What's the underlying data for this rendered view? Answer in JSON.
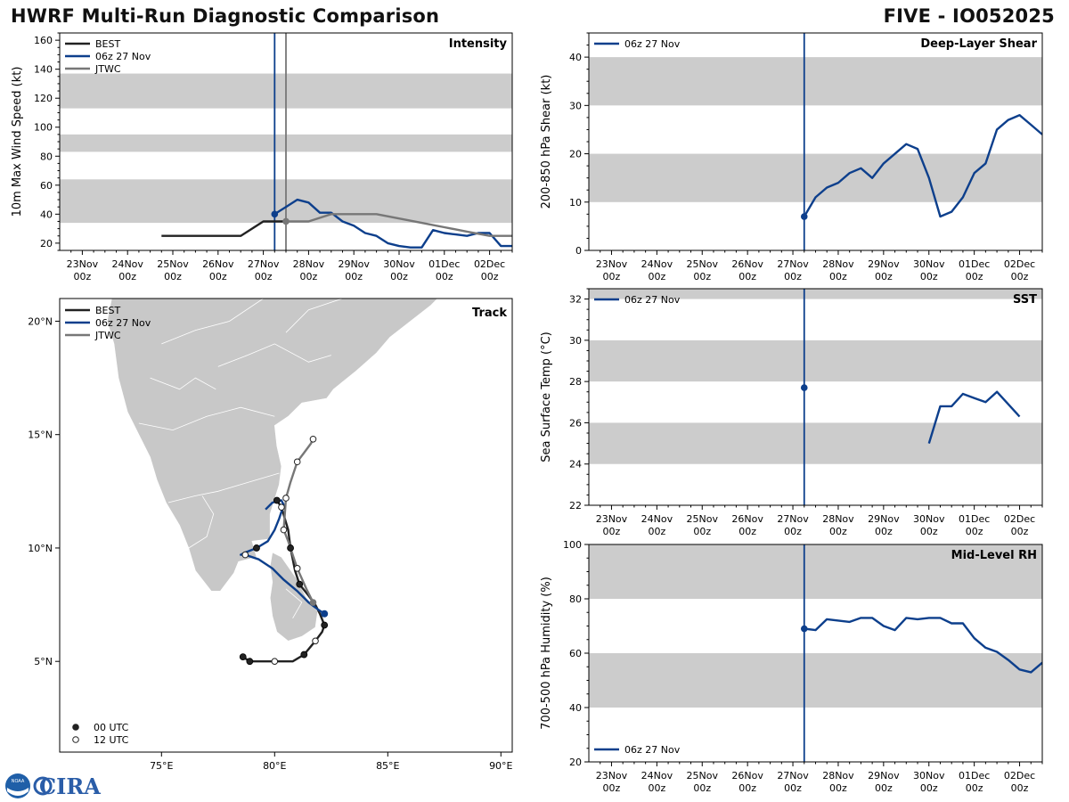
{
  "header": {
    "title": "HWRF Multi-Run Diagnostic Comparison",
    "storm": "FIVE - IO052025"
  },
  "logo": {
    "noaa_text": "NOAA",
    "cira_text": "CIRA"
  },
  "colors": {
    "best": "#222222",
    "run": "#0d3f8c",
    "jtwc": "#777777",
    "band": "#cccccc",
    "land": "#c8c8c8"
  },
  "time_axis": {
    "ticks": [
      {
        "day": "23Nov",
        "hr": "00z",
        "t": 0
      },
      {
        "day": "24Nov",
        "hr": "00z",
        "t": 24
      },
      {
        "day": "25Nov",
        "hr": "00z",
        "t": 48
      },
      {
        "day": "26Nov",
        "hr": "00z",
        "t": 72
      },
      {
        "day": "27Nov",
        "hr": "00z",
        "t": 96
      },
      {
        "day": "28Nov",
        "hr": "00z",
        "t": 120
      },
      {
        "day": "29Nov",
        "hr": "00z",
        "t": 144
      },
      {
        "day": "30Nov",
        "hr": "00z",
        "t": 168
      },
      {
        "day": "01Dec",
        "hr": "00z",
        "t": 192
      },
      {
        "day": "02Dec",
        "hr": "00z",
        "t": 216
      }
    ],
    "range_hours": [
      -12,
      228
    ]
  },
  "chart_data": [
    {
      "id": "intensity",
      "type": "line",
      "title": "Intensity",
      "ylabel": "10m Max Wind Speed (kt)",
      "ylim": [
        15,
        165
      ],
      "yticks": [
        20,
        40,
        60,
        80,
        100,
        120,
        140,
        160
      ],
      "bands": [
        [
          34,
          64
        ],
        [
          83,
          95
        ],
        [
          113,
          137
        ]
      ],
      "init_line_hours": 102,
      "jtwc_line_hours": 108,
      "legend": [
        "BEST",
        "06z 27 Nov",
        "JTWC"
      ],
      "series": [
        {
          "name": "BEST",
          "color": "#222222",
          "x": [
            42,
            48,
            54,
            60,
            66,
            72,
            78,
            84,
            90,
            96,
            102,
            108
          ],
          "y": [
            25,
            25,
            25,
            25,
            25,
            25,
            25,
            25,
            30,
            35,
            35,
            35
          ]
        },
        {
          "name": "06z 27 Nov",
          "color": "#0d3f8c",
          "x": [
            102,
            108,
            114,
            120,
            126,
            132,
            138,
            144,
            150,
            156,
            162,
            168,
            174,
            180,
            186,
            192,
            198,
            204,
            210,
            216,
            222,
            228
          ],
          "y": [
            40,
            45,
            50,
            48,
            41,
            41,
            35,
            32,
            27,
            25,
            20,
            18,
            17,
            17,
            29,
            27,
            26,
            25,
            27,
            27,
            18,
            18
          ],
          "marker_first": true
        },
        {
          "name": "JTWC",
          "color": "#777777",
          "x": [
            108,
            120,
            132,
            144,
            156,
            168,
            180,
            192,
            204,
            216,
            228
          ],
          "y": [
            35,
            35,
            40,
            40,
            40,
            37,
            34,
            31,
            28,
            25,
            25
          ],
          "marker_first": true
        }
      ]
    },
    {
      "id": "shear",
      "type": "line",
      "title": "Deep-Layer Shear",
      "ylabel": "200-850 hPa Shear (kt)",
      "ylim": [
        0,
        45
      ],
      "yticks": [
        0,
        10,
        20,
        30,
        40
      ],
      "bands": [
        [
          10,
          20
        ],
        [
          30,
          40
        ]
      ],
      "init_line_hours": 102,
      "legend": [
        "06z 27 Nov"
      ],
      "series": [
        {
          "name": "06z 27 Nov",
          "color": "#0d3f8c",
          "x": [
            102,
            108,
            114,
            120,
            126,
            132,
            138,
            144,
            150,
            156,
            162,
            168,
            174,
            180,
            186,
            192,
            198,
            204,
            210,
            216,
            222,
            228
          ],
          "y": [
            7,
            11,
            13,
            14,
            16,
            17,
            15,
            18,
            20,
            22,
            21,
            15,
            7,
            8,
            11,
            16,
            18,
            25,
            27,
            28,
            26,
            24
          ],
          "marker_first": true
        }
      ]
    },
    {
      "id": "sst",
      "type": "line",
      "title": "SST",
      "ylabel": "Sea Surface Temp (°C)",
      "ylim": [
        22,
        32.5
      ],
      "yticks": [
        22,
        24,
        26,
        28,
        30,
        32
      ],
      "bands": [
        [
          24,
          26
        ],
        [
          28,
          30
        ],
        [
          32,
          34
        ]
      ],
      "init_line_hours": 102,
      "legend": [
        "06z 27 Nov"
      ],
      "series": [
        {
          "name": "06z 27 Nov",
          "color": "#0d3f8c",
          "x": [
            168,
            174,
            180,
            186,
            192,
            198,
            204,
            216
          ],
          "y": [
            25.0,
            26.8,
            26.8,
            27.4,
            27.2,
            27.0,
            27.5,
            26.3
          ]
        },
        {
          "name": "init",
          "color": "#0d3f8c",
          "x": [
            102
          ],
          "y": [
            27.7
          ],
          "points_only": true
        }
      ]
    },
    {
      "id": "rh",
      "type": "line",
      "title": "Mid-Level RH",
      "ylabel": "700-500 hPa Humidity (%)",
      "ylim": [
        20,
        100
      ],
      "yticks": [
        20,
        40,
        60,
        80,
        100
      ],
      "bands": [
        [
          40,
          60
        ],
        [
          80,
          100
        ]
      ],
      "init_line_hours": 102,
      "legend": [
        "06z 27 Nov"
      ],
      "series": [
        {
          "name": "06z 27 Nov",
          "color": "#0d3f8c",
          "x": [
            102,
            108,
            114,
            120,
            126,
            132,
            138,
            144,
            150,
            156,
            162,
            168,
            174,
            180,
            186,
            192,
            198,
            204,
            210,
            216,
            222,
            228
          ],
          "y": [
            69,
            68.5,
            72.5,
            72,
            71.5,
            73,
            73,
            70,
            68.5,
            73,
            72.5,
            73,
            73,
            71,
            71,
            65.5,
            62,
            60.5,
            57.5,
            54,
            53,
            56.5
          ],
          "marker_first": true
        }
      ]
    },
    {
      "id": "track",
      "type": "scatter",
      "title": "Track",
      "xlim": [
        70.5,
        90.5
      ],
      "ylim": [
        1.0,
        21.0
      ],
      "xticks": [
        75,
        80,
        85,
        90
      ],
      "xtick_labels": [
        "75°E",
        "80°E",
        "85°E",
        "90°E"
      ],
      "yticks": [
        5,
        10,
        15,
        20
      ],
      "ytick_labels": [
        "5°N",
        "10°N",
        "15°N",
        "20°N"
      ],
      "legend": [
        "BEST",
        "06z 27 Nov",
        "JTWC"
      ],
      "marker_legend": [
        "00 UTC",
        "12 UTC"
      ],
      "series": [
        {
          "name": "BEST",
          "color": "#222222",
          "lon": [
            78.6,
            78.9,
            80.0,
            80.8,
            81.3,
            81.8,
            82.1,
            82.2,
            82.0,
            81.8,
            81.5,
            81.1,
            80.9,
            80.7,
            80.6,
            80.3,
            80.1
          ],
          "lat": [
            5.2,
            5.0,
            5.0,
            5.0,
            5.3,
            5.9,
            6.3,
            6.6,
            7.1,
            7.5,
            7.9,
            8.4,
            9.0,
            10.0,
            10.8,
            11.8,
            12.1
          ],
          "marker": [
            "00",
            "00",
            "12",
            null,
            "00",
            "12",
            null,
            "00",
            null,
            null,
            null,
            "00",
            null,
            "00",
            null,
            "12",
            "00"
          ]
        },
        {
          "name": "06z 27 Nov",
          "color": "#0d3f8c",
          "lon": [
            82.2,
            81.9,
            81.5,
            81.0,
            80.4,
            79.9,
            79.3,
            78.7,
            78.5,
            78.7,
            79.2,
            79.7,
            80.0,
            80.2,
            80.4,
            80.3,
            79.9,
            79.6
          ],
          "lat": [
            7.1,
            7.3,
            7.6,
            8.1,
            8.6,
            9.1,
            9.5,
            9.7,
            9.7,
            9.8,
            10.0,
            10.3,
            10.8,
            11.3,
            11.9,
            12.1,
            12.0,
            11.7
          ],
          "marker": [
            "init",
            null,
            null,
            null,
            null,
            null,
            null,
            "12",
            null,
            null,
            "00",
            null,
            null,
            null,
            null,
            null,
            null,
            null
          ]
        },
        {
          "name": "JTWC",
          "color": "#777777",
          "lon": [
            81.7,
            81.4,
            81.0,
            80.6,
            80.4,
            80.5,
            80.7,
            81.0,
            81.3,
            81.6,
            81.7
          ],
          "lat": [
            7.6,
            8.2,
            9.1,
            10.3,
            10.8,
            12.2,
            12.9,
            13.8,
            14.2,
            14.6,
            14.8
          ],
          "marker": [
            "gray",
            null,
            "12",
            null,
            "12",
            "12",
            null,
            "12",
            null,
            null,
            "12"
          ]
        }
      ]
    }
  ]
}
